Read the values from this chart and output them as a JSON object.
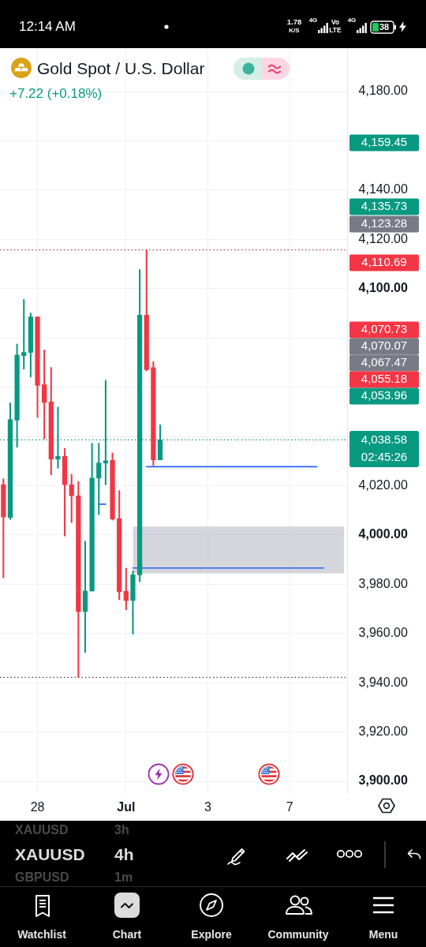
{
  "chart_data": {
    "type": "candlestick",
    "title": "Gold Spot / U.S. Dollar",
    "subtitle": "+7.22 (+0.18%)",
    "categories": [
      null,
      null,
      null,
      null,
      null,
      "28",
      null,
      null,
      null,
      null,
      null,
      null,
      null,
      null,
      null,
      null,
      null,
      null,
      "Jul",
      null,
      null,
      null,
      null,
      null,
      null,
      null,
      null,
      null,
      null,
      null,
      "3",
      null,
      null,
      null,
      null,
      null,
      null,
      null,
      null,
      null,
      null,
      null,
      "7",
      null,
      null,
      null,
      null,
      null,
      null,
      null,
      null
    ],
    "ohlc": [
      [
        4020.4,
        4022.8,
        3982.6,
        4007.3
      ],
      [
        4007.1,
        4053.6,
        4006.3,
        4046.8
      ],
      [
        4046.6,
        4077.5,
        4035.6,
        4073.0
      ],
      [
        4072.8,
        4095.6,
        4067.3,
        4074.1
      ],
      [
        4074.1,
        4090.1,
        4064.1,
        4088.5
      ],
      [
        4088.5,
        4088.5,
        4047.7,
        4060.7
      ],
      [
        4061.0,
        4075.1,
        4039.0,
        4053.8
      ],
      [
        4054.0,
        4068.0,
        4024.4,
        4030.8
      ],
      [
        4030.8,
        4051.9,
        4027.1,
        4031.9
      ],
      [
        4031.9,
        4035.1,
        3999.6,
        4020.4
      ],
      [
        4020.4,
        4024.6,
        4005.0,
        4015.9
      ],
      [
        4015.9,
        4021.7,
        3942.2,
        3968.9
      ],
      [
        3968.9,
        3997.5,
        3952.3,
        3977.2
      ],
      [
        3977.2,
        4037.2,
        3977.2,
        4023.1
      ],
      [
        4023.1,
        4037.2,
        4008.2,
        4029.2
      ],
      [
        4029.2,
        4062.8,
        4020.4,
        4030.1
      ],
      [
        4030.3,
        4033.3,
        4006.0,
        4006.5
      ],
      [
        4006.6,
        4018.0,
        3973.7,
        3976.9
      ],
      [
        3977.1,
        3986.5,
        3969.6,
        3973.4
      ],
      [
        3973.4,
        3985.4,
        3959.8,
        3983.8
      ],
      [
        3983.8,
        4107.7,
        3981.0,
        4089.2
      ],
      [
        4089.2,
        4115.7,
        4066.6,
        4067.1
      ],
      [
        4067.9,
        4070.3,
        4028.1,
        4030.5
      ],
      [
        4030.5,
        4044.7,
        4030.5,
        4038.6
      ],
      null,
      null,
      null,
      null,
      null,
      null,
      null,
      null,
      null,
      null,
      null,
      null,
      null,
      null,
      null,
      null,
      null,
      null,
      null,
      null,
      null,
      null,
      null,
      null,
      null,
      null,
      null
    ],
    "colors": [
      "#f23645",
      "#089981",
      "#089981",
      "#089981",
      "#089981",
      "#f23645",
      "#f23645",
      "#f23645",
      "#089981",
      "#f23645",
      "#f23645",
      "#f23645",
      "#089981",
      "#089981",
      "#089981",
      "#089981",
      "#f23645",
      "#f23645",
      "#f23645",
      "#089981",
      "#089981",
      "#f23645",
      "#f23645",
      "#089981",
      null,
      null,
      null,
      null,
      null,
      null,
      null,
      null,
      null,
      null,
      null,
      null,
      null,
      null,
      null,
      null,
      null,
      null,
      null,
      null,
      null,
      null,
      null,
      null,
      null,
      null,
      null
    ],
    "series": [
      {
        "type": "line",
        "color": "#2962ff",
        "values": [
          null,
          null,
          null,
          null,
          null,
          null,
          null,
          null,
          null,
          null,
          null,
          null,
          null,
          null,
          null,
          null,
          null,
          null,
          null,
          null,
          null,
          4027.7,
          4027.7,
          4027.7,
          4027.7,
          4027.7,
          4027.7,
          4027.7,
          4027.7,
          4027.7,
          4027.7,
          4027.7,
          4027.7,
          4027.7,
          4027.7,
          4027.7,
          4027.7,
          4027.7,
          4027.7,
          4027.7,
          4027.7,
          4027.7,
          4027.7,
          4027.7,
          4027.7,
          4027.7,
          4027.7,
          null,
          null,
          null,
          null
        ]
      },
      {
        "type": "line",
        "color": "#2962ff",
        "values": [
          null,
          null,
          null,
          null,
          null,
          null,
          null,
          null,
          null,
          null,
          null,
          null,
          null,
          null,
          null,
          null,
          null,
          null,
          null,
          3986.6,
          3986.6,
          3986.6,
          3986.6,
          3986.6,
          3986.6,
          3986.6,
          3986.6,
          3986.6,
          3986.6,
          3986.6,
          3986.6,
          3986.6,
          3986.6,
          3986.6,
          3986.6,
          3986.6,
          3986.6,
          3986.6,
          3986.6,
          3986.6,
          3986.6,
          3986.6,
          3986.6,
          3986.6,
          3986.6,
          3986.6,
          3986.6,
          3986.6,
          null,
          null,
          null
        ],
        "lower": [
          null,
          null,
          null,
          null,
          null,
          null,
          null,
          null,
          null,
          null,
          null,
          null,
          null,
          null,
          null,
          null,
          null,
          null,
          null,
          3984.4,
          3984.4,
          3984.4,
          3984.4,
          3984.4,
          3984.4,
          3984.4,
          3984.4,
          3984.4,
          3984.4,
          3984.4,
          3984.4,
          3984.4,
          3984.4,
          3984.4,
          3984.4,
          3984.4,
          3984.4,
          3984.4,
          3984.4,
          3984.4,
          3984.4,
          3984.4,
          3984.4,
          3984.4,
          3984.4,
          3984.4,
          3984.4,
          3984.4,
          3984.4,
          3984.4,
          3984.4
        ],
        "upper": [
          null,
          null,
          null,
          null,
          null,
          null,
          null,
          null,
          null,
          null,
          null,
          null,
          null,
          null,
          null,
          null,
          null,
          null,
          null,
          4003.4,
          4003.4,
          4003.4,
          4003.4,
          4003.4,
          4003.4,
          4003.4,
          4003.4,
          4003.4,
          4003.4,
          4003.4,
          4003.4,
          4003.4,
          4003.4,
          4003.4,
          4003.4,
          4003.4,
          4003.4,
          4003.4,
          4003.4,
          4003.4,
          4003.4,
          4003.4,
          4003.4,
          4003.4,
          4003.4,
          4003.4,
          4003.4,
          4003.4,
          4003.4,
          4003.4,
          4003.4
        ]
      },
      {
        "type": "line",
        "color": "#2962ff",
        "values": [
          null,
          null,
          null,
          null,
          null,
          null,
          null,
          null,
          null,
          null,
          null,
          null,
          null,
          null,
          4012.5,
          4012.5,
          null,
          null,
          null,
          null,
          null,
          null,
          null,
          null,
          null,
          null,
          null,
          null,
          null,
          null,
          null,
          null,
          null,
          null,
          null,
          null,
          null,
          null,
          null,
          null,
          null,
          null,
          null,
          null,
          null,
          null,
          null,
          null,
          null,
          null,
          null
        ]
      }
    ],
    "ylim": [
      3895.2,
      4197.3
    ],
    "yticks": [
      {
        "value": 3900,
        "label": "3,900.00"
      },
      {
        "value": 3920,
        "label": "3,920.00"
      },
      {
        "value": 3940,
        "label": "3,940.00"
      },
      {
        "value": 3960,
        "label": "3,960.00"
      },
      {
        "value": 3980,
        "label": "3,980.00"
      },
      {
        "value": 4000,
        "label": "4,000.00"
      },
      {
        "value": 4020,
        "label": "4,020.00"
      },
      {
        "value": 4040,
        "label": null
      },
      {
        "value": 4060,
        "label": null
      },
      {
        "value": 4080,
        "label": null
      },
      {
        "value": 4100,
        "label": "4,100.00"
      },
      {
        "value": 4120,
        "label": "4,120.00"
      },
      {
        "value": 4140,
        "label": "4,140.00"
      },
      {
        "value": 4160,
        "label": null
      },
      {
        "value": 4180,
        "label": "4,180.00"
      }
    ],
    "grid": true,
    "ref_lines": [
      {
        "axis": "y",
        "value": 4115.7,
        "color": "#b2444a",
        "line_style": "dotted"
      },
      {
        "axis": "y",
        "value": 4038.58,
        "label": "4,038.58",
        "color": "#089981",
        "line_style": "dotted"
      },
      {
        "axis": "y",
        "value": 3942.2,
        "color": "#4a3a3d",
        "line_style": "dotted"
      }
    ],
    "annotations": [
      "12:14 AM",
      "1.78",
      "K/S",
      "4G",
      "Vo",
      "LTE",
      "4G",
      "38",
      "4,159.45",
      "4,135.73",
      "4,123.28",
      "4,110.69",
      "4,070.73",
      "4,070.07",
      "4,067.47",
      "4,055.18",
      "4,053.96",
      "02:45:26",
      "XAUUSD",
      "3h",
      "XAUUSD",
      "4h",
      "GBPUSD",
      "1m",
      "Watchlist",
      "Chart",
      "Explore",
      "Community",
      "Menu"
    ]
  }
}
